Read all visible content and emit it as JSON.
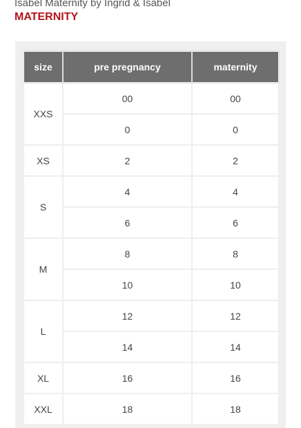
{
  "header": {
    "brand": "Isabel Maternity by Ingrid & Isabel",
    "category": "MATERNITY"
  },
  "table": {
    "columns": [
      "size",
      "pre pregnancy",
      "maternity"
    ],
    "groups": [
      {
        "size": "XXS",
        "rows": [
          [
            "00",
            "00"
          ],
          [
            "0",
            "0"
          ]
        ]
      },
      {
        "size": "XS",
        "rows": [
          [
            "2",
            "2"
          ]
        ]
      },
      {
        "size": "S",
        "rows": [
          [
            "4",
            "4"
          ],
          [
            "6",
            "6"
          ]
        ]
      },
      {
        "size": "M",
        "rows": [
          [
            "8",
            "8"
          ],
          [
            "10",
            "10"
          ]
        ]
      },
      {
        "size": "L",
        "rows": [
          [
            "12",
            "12"
          ],
          [
            "14",
            "14"
          ]
        ]
      },
      {
        "size": "XL",
        "rows": [
          [
            "16",
            "16"
          ]
        ]
      },
      {
        "size": "XXL",
        "rows": [
          [
            "18",
            "18"
          ]
        ]
      }
    ]
  }
}
